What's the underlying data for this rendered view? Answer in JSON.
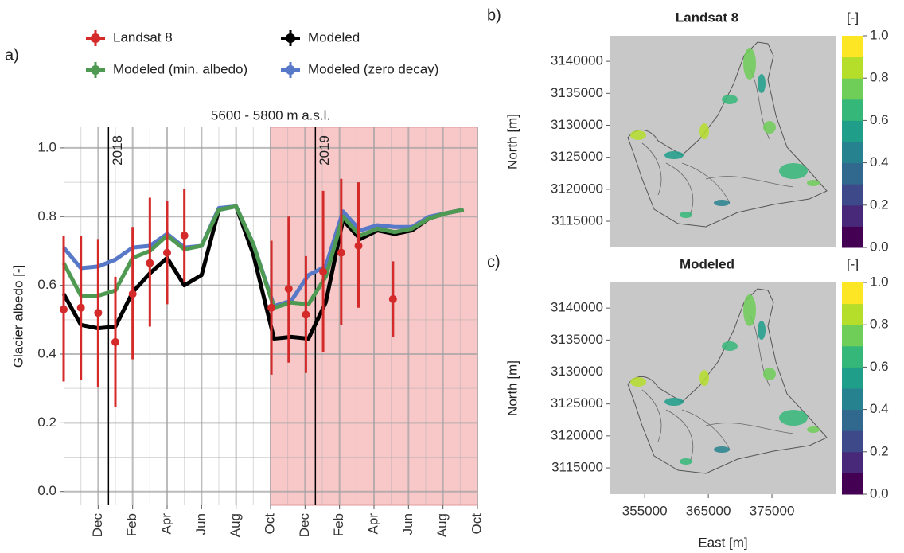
{
  "chart_data": [
    {
      "type": "line",
      "panel_label": "a)",
      "title": "5600 - 5800 m a.s.l.",
      "ylabel": "Glacier albedo [-]",
      "xlim": [
        0,
        24
      ],
      "ylim": [
        -0.04,
        1.06
      ],
      "xticks": [
        {
          "value": 2,
          "label": "Dec"
        },
        {
          "value": 4,
          "label": "Feb"
        },
        {
          "value": 6,
          "label": "Apr"
        },
        {
          "value": 8,
          "label": "Jun"
        },
        {
          "value": 10,
          "label": "Aug"
        },
        {
          "value": 12,
          "label": "Oct"
        },
        {
          "value": 14,
          "label": "Dec"
        },
        {
          "value": 16,
          "label": "Feb"
        },
        {
          "value": 18,
          "label": "Apr"
        },
        {
          "value": 20,
          "label": "Jun"
        },
        {
          "value": 22,
          "label": "Aug"
        },
        {
          "value": 24,
          "label": "Oct"
        }
      ],
      "yticks": [
        {
          "value": 0,
          "label": "0.0"
        },
        0.2,
        0.4,
        0.6,
        0.8,
        {
          "value": 1,
          "label": "1.0"
        }
      ],
      "grid": true,
      "shade": [
        12,
        24
      ],
      "vlines": [
        {
          "x": 2.6,
          "label": "2018"
        },
        {
          "x": 14.6,
          "label": "2019"
        }
      ],
      "series": [
        {
          "name": "Landsat 8",
          "color": "#d42a2a",
          "x": [
            0,
            1,
            2,
            3,
            4,
            5,
            6,
            7,
            12.05,
            13.05,
            14.05,
            15.05,
            16.1,
            17.1,
            19.1
          ],
          "values": [
            0.53,
            0.535,
            0.52,
            0.435,
            0.575,
            0.665,
            0.695,
            0.745,
            0.535,
            0.59,
            0.515,
            0.64,
            0.695,
            0.715,
            0.56
          ],
          "lower": [
            0.32,
            0.325,
            0.305,
            0.245,
            0.385,
            0.48,
            0.545,
            0.61,
            0.34,
            0.375,
            0.345,
            0.405,
            0.485,
            0.535,
            0.45
          ],
          "upper": [
            0.745,
            0.745,
            0.735,
            0.625,
            0.77,
            0.855,
            0.845,
            0.88,
            0.73,
            0.8,
            0.685,
            0.875,
            0.91,
            0.9,
            0.67
          ]
        },
        {
          "name": "Modeled",
          "color": "#000000",
          "x": [
            0,
            1,
            2,
            3,
            4,
            5,
            6,
            7,
            8,
            9,
            10,
            11,
            12.2,
            13.2,
            14.2,
            15.2,
            16.2,
            17.2,
            18.2,
            19.2,
            20.2,
            21.2,
            22.2,
            23.2
          ],
          "values": [
            0.575,
            0.485,
            0.475,
            0.48,
            0.58,
            0.635,
            0.68,
            0.6,
            0.63,
            0.82,
            0.83,
            0.69,
            0.445,
            0.45,
            0.445,
            0.55,
            0.79,
            0.735,
            0.76,
            0.75,
            0.76,
            0.795,
            0.81,
            0.82
          ]
        },
        {
          "name": "Modeled (min. albedo)",
          "color": "#4f9a52",
          "x": [
            0,
            1,
            2,
            3,
            4,
            5,
            6,
            7,
            8,
            9,
            10,
            11,
            12.2,
            13.2,
            14.2,
            15.2,
            16.2,
            17.2,
            18.2,
            19.2,
            20.2,
            21.2,
            22.2,
            23.2
          ],
          "values": [
            0.665,
            0.57,
            0.57,
            0.585,
            0.68,
            0.7,
            0.745,
            0.705,
            0.715,
            0.82,
            0.83,
            0.72,
            0.535,
            0.55,
            0.545,
            0.625,
            0.8,
            0.745,
            0.765,
            0.755,
            0.765,
            0.795,
            0.81,
            0.82
          ]
        },
        {
          "name": "Modeled (zero decay)",
          "color": "#5878c8",
          "x": [
            0,
            1,
            2,
            3,
            4,
            5,
            6,
            7,
            8,
            9,
            10,
            11,
            12.2,
            13.2,
            14.2,
            15.2,
            16.2,
            17.2,
            18.2,
            19.2,
            20.2,
            21.2,
            22.2,
            23.2
          ],
          "values": [
            0.71,
            0.65,
            0.655,
            0.675,
            0.71,
            0.715,
            0.75,
            0.71,
            0.715,
            0.825,
            0.83,
            0.72,
            0.54,
            0.555,
            0.63,
            0.655,
            0.815,
            0.76,
            0.775,
            0.77,
            0.77,
            0.8,
            0.81,
            0.82
          ]
        }
      ]
    },
    {
      "type": "map",
      "panel_label": "b)",
      "title": "Landsat 8",
      "ylabel": "North [m]",
      "ylim": [
        3110900,
        3144000
      ],
      "yticks": [
        3115000,
        3120000,
        3125000,
        3130000,
        3135000,
        3140000
      ],
      "colorbar": {
        "label": "[-]",
        "lim": [
          0,
          1
        ],
        "ticks": [
          {
            "value": 0,
            "label": "0.0"
          },
          0.2,
          0.4,
          0.6,
          0.8,
          {
            "value": 1,
            "label": "1.0"
          }
        ],
        "colors": [
          "#440154",
          "#482878",
          "#3e4989",
          "#31688e",
          "#26828e",
          "#1f9e89",
          "#35b779",
          "#6ece58",
          "#b5de2b",
          "#fde725"
        ]
      }
    },
    {
      "type": "map",
      "panel_label": "c)",
      "title": "Modeled",
      "ylabel": "North [m]",
      "xlabel": "East [m]",
      "xlim": [
        349600,
        385000
      ],
      "xticks": [
        355000,
        365000,
        375000
      ],
      "ylim": [
        3110900,
        3144000
      ],
      "yticks": [
        3115000,
        3120000,
        3125000,
        3130000,
        3135000,
        3140000
      ],
      "colorbar": {
        "label": "[-]",
        "lim": [
          0,
          1
        ],
        "ticks": [
          {
            "value": 0,
            "label": "0.0"
          },
          0.2,
          0.4,
          0.6,
          0.8,
          {
            "value": 1,
            "label": "1.0"
          }
        ],
        "colors": [
          "#440154",
          "#482878",
          "#3e4989",
          "#31688e",
          "#26828e",
          "#1f9e89",
          "#35b779",
          "#6ece58",
          "#b5de2b",
          "#fde725"
        ]
      }
    }
  ]
}
